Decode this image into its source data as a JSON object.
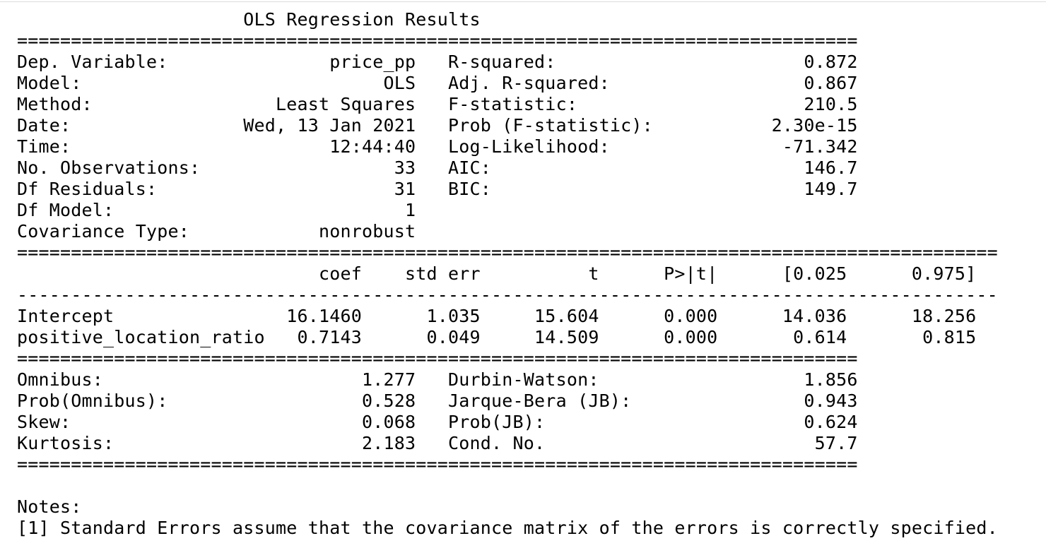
{
  "output": {
    "lines": [
      "                     OLS Regression Results                            ",
      "==============================================================================",
      "Dep. Variable:               price_pp   R-squared:                       0.872",
      "Model:                            OLS   Adj. R-squared:                  0.867",
      "Method:                 Least Squares   F-statistic:                     210.5",
      "Date:                Wed, 13 Jan 2021   Prob (F-statistic):           2.30e-15",
      "Time:                        12:44:40   Log-Likelihood:                -71.342",
      "No. Observations:                  33   AIC:                             146.7",
      "Df Residuals:                      31   BIC:                             149.7",
      "Df Model:                           1                                         ",
      "Covariance Type:            nonrobust                                         ",
      "===========================================================================================",
      "                            coef    std err          t      P>|t|      [0.025      0.975]",
      "-------------------------------------------------------------------------------------------",
      "Intercept                16.1460      1.035     15.604      0.000      14.036      18.256",
      "positive_location_ratio   0.7143      0.049     14.509      0.000       0.614       0.815",
      "==============================================================================",
      "Omnibus:                        1.277   Durbin-Watson:                   1.856",
      "Prob(Omnibus):                  0.528   Jarque-Bera (JB):                0.943",
      "Skew:                           0.068   Prob(JB):                        0.624",
      "Kurtosis:                       2.183   Cond. No.                         57.7",
      "==============================================================================",
      "",
      "Notes:",
      "[1] Standard Errors assume that the covariance matrix of the errors is correctly specified."
    ]
  }
}
